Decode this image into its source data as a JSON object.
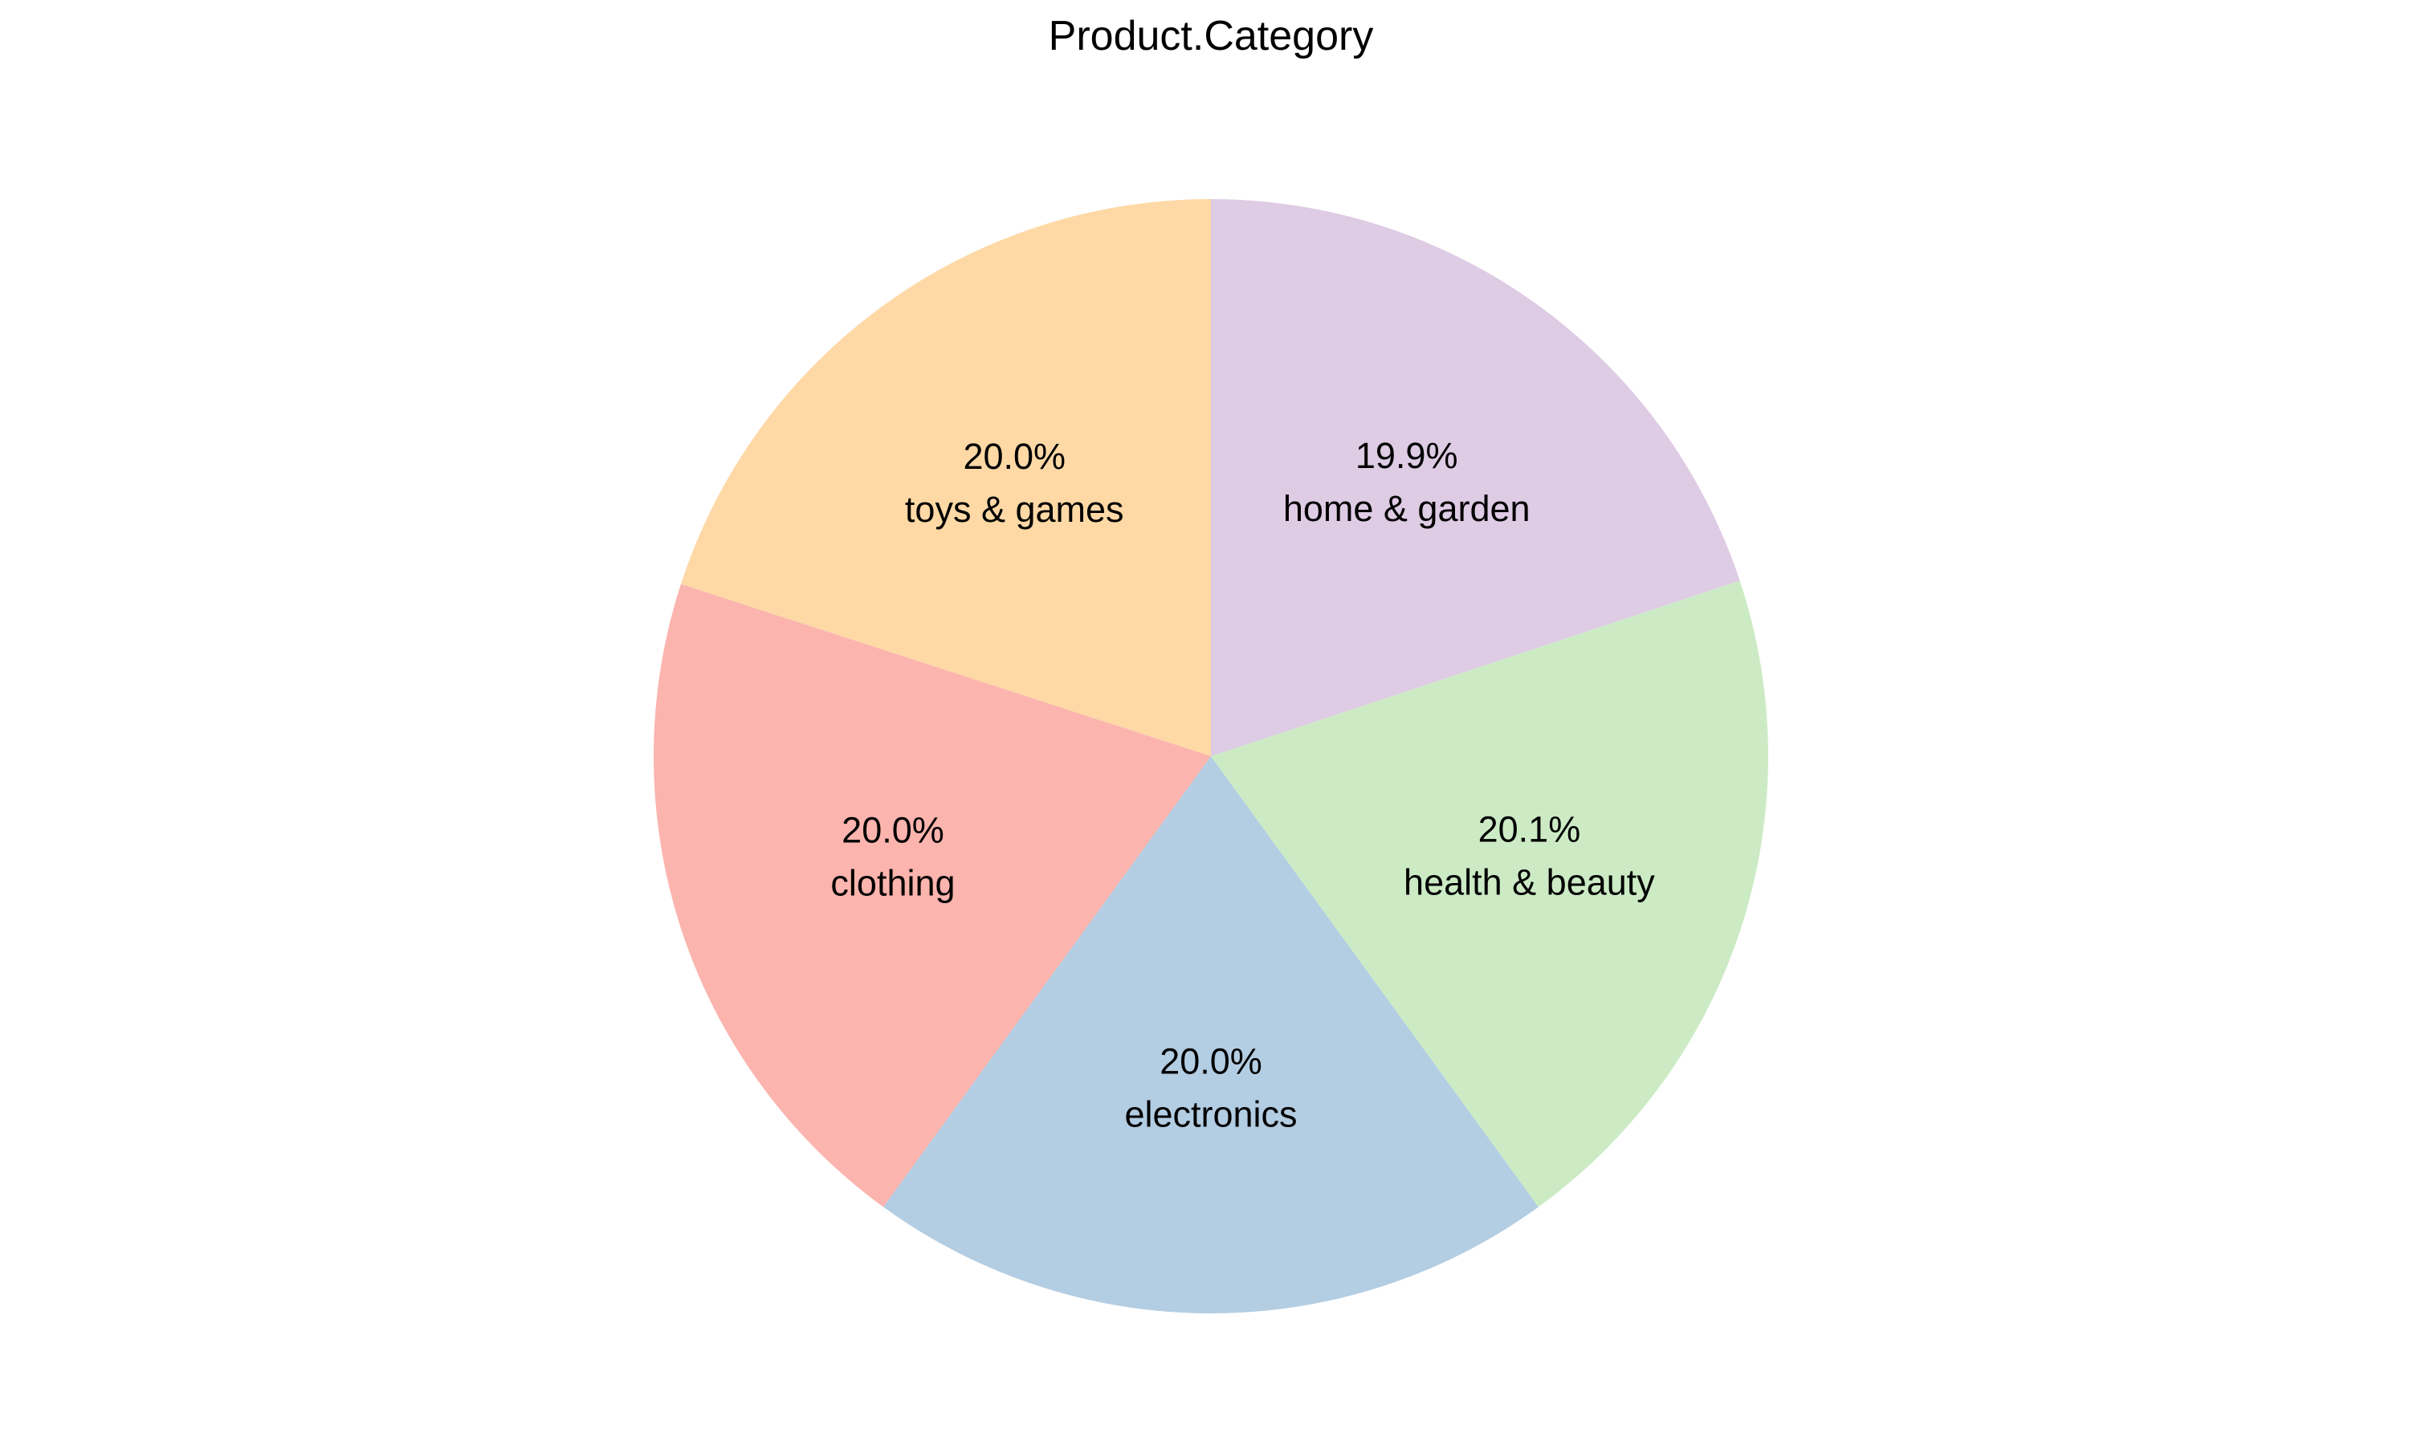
{
  "chart_data": {
    "type": "pie",
    "title": "Product.Category",
    "slices": [
      {
        "label": "toys & games",
        "percent_label": "20.0%",
        "value": 20.0,
        "color": "#FED9A6"
      },
      {
        "label": "clothing",
        "percent_label": "20.0%",
        "value": 20.0,
        "color": "#FBB4AE"
      },
      {
        "label": "electronics",
        "percent_label": "20.0%",
        "value": 20.0,
        "color": "#B3CDE3"
      },
      {
        "label": "health & beauty",
        "percent_label": "20.1%",
        "value": 20.1,
        "color": "#CCEBC5"
      },
      {
        "label": "home & garden",
        "percent_label": "19.9%",
        "value": 19.9,
        "color": "#DECBE4"
      }
    ],
    "start": "12 o'clock",
    "direction": "counterclockwise"
  }
}
